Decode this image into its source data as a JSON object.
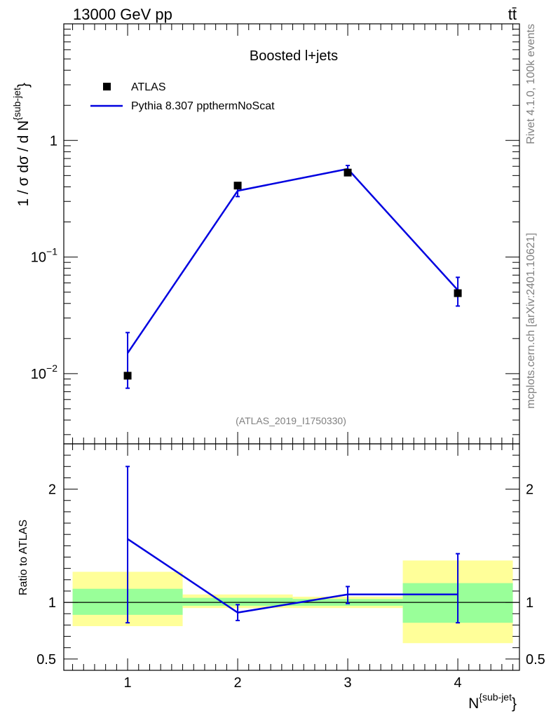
{
  "header": {
    "left": "13000 GeV pp",
    "right": "tt̄"
  },
  "side": {
    "rivet": "Rivet 4.1.0,  100k events",
    "source": "mcplots.cern.ch [arXiv:2401.10621]"
  },
  "chart_data": [
    {
      "type": "scatter",
      "title": "Boosted l+jets",
      "analysis_label": "(ATLAS_2019_I1750330)",
      "ylabel": "1 / σ dσ / d N^{sub-jet}",
      "yscale": "log",
      "ylim": [
        0.0025,
        10
      ],
      "xlim": [
        0.42,
        4.56
      ],
      "legend_position": "top-left",
      "y_ticks": [
        {
          "value": 0.01,
          "base": "10",
          "exp": "−2"
        },
        {
          "value": 0.1,
          "base": "10",
          "exp": "−1"
        },
        {
          "value": 1,
          "label": "1"
        }
      ],
      "series": [
        {
          "name": "ATLAS",
          "style": "markers",
          "x": [
            1,
            2,
            3,
            4
          ],
          "y": [
            0.0096,
            0.41,
            0.53,
            0.049
          ]
        },
        {
          "name": "Pythia 8.307 ppthermNoScat",
          "style": "line",
          "x": [
            1,
            2,
            3,
            4
          ],
          "y": [
            0.015,
            0.37,
            0.57,
            0.052
          ],
          "yerr_low": [
            0.0075,
            0.33,
            0.53,
            0.038
          ],
          "yerr_high": [
            0.0225,
            0.41,
            0.61,
            0.067
          ]
        }
      ]
    },
    {
      "type": "line",
      "ylabel": "Ratio to ATLAS",
      "xlabel": "N^{sub-jet}",
      "ylim": [
        0.4,
        2.4
      ],
      "xlim": [
        0.42,
        4.56
      ],
      "x_ticks": [
        "1",
        "2",
        "3",
        "4"
      ],
      "y_ticks": [
        {
          "value": 0.5,
          "label": "0.5"
        },
        {
          "value": 1,
          "label": "1"
        },
        {
          "value": 2,
          "label": "2"
        }
      ],
      "bands": [
        {
          "x_low": 0.5,
          "x_high": 1.5,
          "green": [
            0.89,
            1.12
          ],
          "yellow": [
            0.79,
            1.27
          ]
        },
        {
          "x_low": 1.5,
          "x_high": 2.5,
          "green": [
            0.97,
            1.04
          ],
          "yellow": [
            0.95,
            1.07
          ]
        },
        {
          "x_low": 2.5,
          "x_high": 3.5,
          "green": [
            0.97,
            1.03
          ],
          "yellow": [
            0.95,
            1.05
          ]
        },
        {
          "x_low": 3.5,
          "x_high": 4.5,
          "green": [
            0.82,
            1.17
          ],
          "yellow": [
            0.64,
            1.37
          ]
        }
      ],
      "series": [
        {
          "name": "Pythia 8.307 ppthermNoScat / ATLAS",
          "x": [
            1,
            2,
            3,
            4
          ],
          "y": [
            1.56,
            0.91,
            1.07,
            1.07
          ],
          "yerr_low": [
            0.82,
            0.84,
            0.99,
            0.82
          ],
          "yerr_high": [
            2.2,
            0.98,
            1.14,
            1.43
          ]
        }
      ]
    }
  ],
  "colors": {
    "mc": "#0000e0",
    "data": "#000000",
    "band_green": "#99ff99",
    "band_yellow": "#ffff99",
    "side_text": "#808080"
  }
}
